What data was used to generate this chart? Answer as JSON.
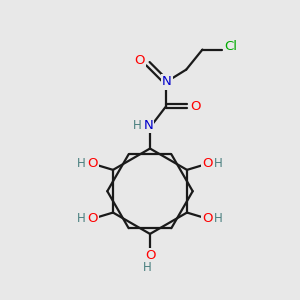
{
  "bg_color": "#e8e8e8",
  "atom_colors": {
    "C": "#000000",
    "N": "#0000cc",
    "O": "#ff0000",
    "Cl": "#00aa00",
    "H": "#4a7f7f"
  },
  "bond_color": "#1a1a1a",
  "bond_width": 1.6,
  "figsize": [
    3.0,
    3.0
  ],
  "dpi": 100
}
